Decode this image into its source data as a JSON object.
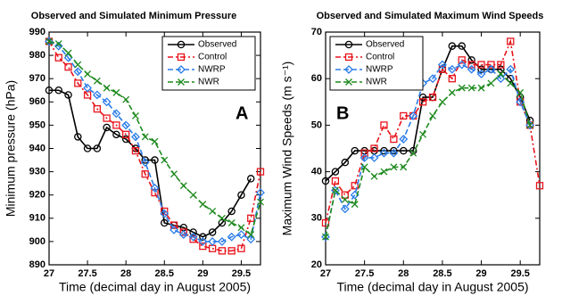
{
  "chart_data": [
    {
      "type": "line",
      "title": "Observed and Simulated Minimum Pressure",
      "xlabel": "Time (decimal day in August 2005)",
      "ylabel": "Minimum pressure (hPa)",
      "annotation": "A",
      "legend": "upper right",
      "x": [
        27,
        27.125,
        27.25,
        27.375,
        27.5,
        27.625,
        27.75,
        27.875,
        28,
        28.125,
        28.25,
        28.375,
        28.5,
        28.625,
        28.75,
        28.875,
        29,
        29.125,
        29.25,
        29.375,
        29.5,
        29.625,
        29.75
      ],
      "xlim": [
        27,
        29.75
      ],
      "xticks": [
        27,
        27.5,
        28,
        28.5,
        29,
        29.5
      ],
      "ylim": [
        890,
        990
      ],
      "yticks": [
        890,
        900,
        910,
        920,
        930,
        940,
        950,
        960,
        970,
        980,
        990
      ],
      "series": [
        {
          "name": "Observed",
          "color": "#000000",
          "marker": "circle",
          "linestyle": "solid",
          "values": [
            965,
            965,
            963,
            945,
            940,
            940,
            949,
            946,
            944,
            940,
            935,
            935,
            908,
            907,
            906,
            904,
            902,
            904,
            908,
            913,
            920,
            927,
            null
          ]
        },
        {
          "name": "Control",
          "color": "#e8141c",
          "marker": "square",
          "linestyle": "dashdot",
          "values": [
            986,
            979,
            975,
            968,
            963,
            957,
            953,
            950,
            946,
            939,
            929,
            921,
            913,
            907,
            904,
            901,
            898,
            897,
            896,
            896,
            897,
            910,
            930
          ]
        },
        {
          "name": "NWRP",
          "color": "#2b7de9",
          "marker": "diamond",
          "linestyle": "dashed",
          "values": [
            986,
            984,
            979,
            973,
            966,
            963,
            960,
            955,
            950,
            945,
            934,
            923,
            912,
            905,
            903,
            902,
            900,
            900,
            900,
            902,
            903,
            901,
            921
          ]
        },
        {
          "name": "NWR",
          "color": "#1e8a1e",
          "marker": "x",
          "linestyle": "dashed",
          "values": [
            986,
            985,
            981,
            976,
            972,
            969,
            966,
            964,
            961,
            954,
            945,
            943,
            935,
            929,
            924,
            920,
            916,
            913,
            910,
            908,
            906,
            903,
            917
          ]
        }
      ]
    },
    {
      "type": "line",
      "title": "Observed and Simulated Maximum Wind Speeds",
      "xlabel": "Time (decimal day in August 2005)",
      "ylabel": "Maximum Wind Speeds (m s⁻¹)",
      "annotation": "B",
      "legend": "upper left",
      "x": [
        27,
        27.125,
        27.25,
        27.375,
        27.5,
        27.625,
        27.75,
        27.875,
        28,
        28.125,
        28.25,
        28.375,
        28.5,
        28.625,
        28.75,
        28.875,
        29,
        29.125,
        29.25,
        29.375,
        29.5,
        29.625,
        29.75
      ],
      "xlim": [
        27,
        29.75
      ],
      "xticks": [
        27,
        27.5,
        28,
        28.5,
        29,
        29.5
      ],
      "ylim": [
        20,
        70
      ],
      "yticks": [
        20,
        30,
        40,
        50,
        60,
        70
      ],
      "series": [
        {
          "name": "Observed",
          "color": "#000000",
          "marker": "circle",
          "linestyle": "solid",
          "values": [
            38,
            40,
            42,
            44.5,
            44.5,
            44.5,
            44.5,
            44.5,
            44.5,
            44.5,
            56,
            56,
            62,
            67,
            67,
            64,
            62,
            62,
            62,
            60,
            56,
            51,
            null
          ]
        },
        {
          "name": "Control",
          "color": "#e8141c",
          "marker": "square",
          "linestyle": "dashdot",
          "values": [
            29,
            38,
            35,
            37,
            44,
            45,
            50,
            47,
            52,
            52,
            55,
            56,
            62,
            60,
            64,
            63,
            63,
            63,
            63,
            68,
            55,
            50,
            37
          ]
        },
        {
          "name": "NWRP",
          "color": "#2b7de9",
          "marker": "diamond",
          "linestyle": "dashed",
          "values": [
            26,
            36,
            32,
            35,
            43,
            43,
            44,
            44,
            47,
            52,
            59,
            60,
            63,
            62,
            63,
            62,
            61,
            62,
            60,
            62,
            55,
            50,
            null
          ]
        },
        {
          "name": "NWR",
          "color": "#1e8a1e",
          "marker": "x",
          "linestyle": "dashed",
          "values": [
            26,
            36,
            34,
            33,
            41,
            39,
            40,
            41,
            41,
            44,
            48,
            52,
            55,
            57,
            58,
            58,
            58,
            59,
            61,
            59,
            57,
            50,
            null
          ]
        }
      ]
    }
  ]
}
